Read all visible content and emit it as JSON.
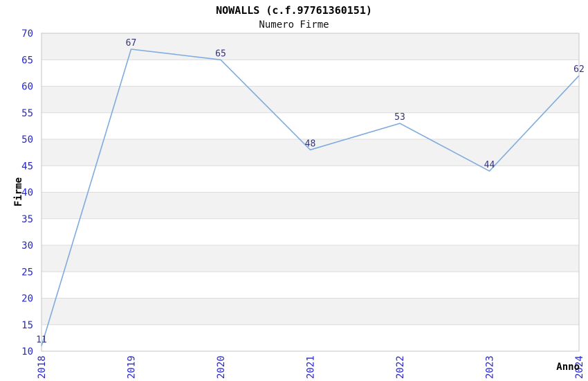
{
  "chart_data": {
    "type": "line",
    "title": "NOWALLS (c.f.97761360151)",
    "subtitle": "Numero Firme",
    "xlabel": "Anno",
    "ylabel": "Firme",
    "categories": [
      "2018",
      "2019",
      "2020",
      "2021",
      "2022",
      "2023",
      "2024"
    ],
    "series": [
      {
        "name": "Numero Firme",
        "values": [
          11,
          67,
          65,
          48,
          53,
          44,
          62
        ]
      }
    ],
    "ylim": [
      10,
      70
    ],
    "ytick_step": 5,
    "ytick_labels": [
      "10",
      "15",
      "20",
      "25",
      "30",
      "35",
      "40",
      "45",
      "50",
      "55",
      "60",
      "65",
      "70"
    ],
    "point_labels": [
      "11",
      "67",
      "65",
      "48",
      "53",
      "44",
      "62"
    ],
    "grid": true,
    "legend": false,
    "band_pattern": "alternating horizontal bands, top band shaded",
    "colors": {
      "line": "#7fabdf",
      "band_shaded": "#f2f2f2",
      "band_plain": "#ffffff",
      "gridline": "#dcdcdc",
      "plot_border": "#c6c6c6",
      "tick_label": "#2626cc",
      "point_label": "#333377",
      "axis_title": "#000000",
      "title": "#000000",
      "background": "#ffffff"
    }
  }
}
